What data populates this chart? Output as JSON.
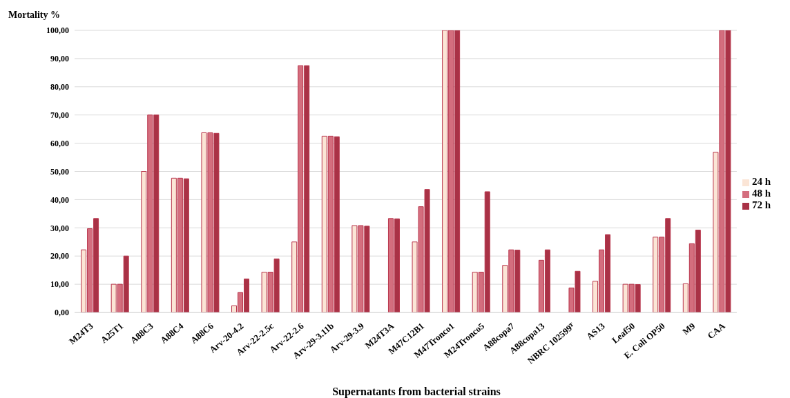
{
  "chart_data": {
    "type": "bar",
    "ylabel": "Mortality %",
    "xlabel": "Supernatants from bacterial strains",
    "categories": [
      "M24T3",
      "A25T1",
      "A88C3",
      "A88C4",
      "A88C6",
      "Arv-20-4.2",
      "Arv-22-2.5c",
      "Arv-22-2.6",
      "Arv-29-3.11b",
      "Arv-29-3.9",
      "M24T3A",
      "M47C12B1",
      "M47Tronco1",
      "M24Tronco5",
      "A88copa7",
      "A88copa13",
      "NBRC 102599ᵀ",
      "AS13",
      "Leaf50",
      "E. Coli OP50",
      "M9",
      "CAA"
    ],
    "series": [
      {
        "name": "24 h",
        "color": "#fbe5d6",
        "values": [
          22.2,
          10,
          50,
          47.6,
          63.7,
          2.4,
          14.3,
          25,
          62.5,
          30.8,
          0,
          25,
          100,
          14.3,
          16.7,
          0,
          0,
          11.1,
          10,
          26.7,
          10.2,
          56.8
        ]
      },
      {
        "name": "48 h",
        "color": "#d46e7e",
        "values": [
          29.7,
          10,
          70,
          47.6,
          63.7,
          7.1,
          14.3,
          87.5,
          62.5,
          30.8,
          33.3,
          37.5,
          100,
          14.3,
          22.2,
          18.5,
          8.7,
          22.2,
          10,
          26.7,
          24.4,
          100
        ]
      },
      {
        "name": "72 h",
        "color": "#a93246",
        "values": [
          33.3,
          20,
          70,
          47.4,
          63.5,
          11.9,
          19,
          87.5,
          62.3,
          30.6,
          33.2,
          43.6,
          100,
          42.8,
          22.1,
          22.2,
          14.6,
          27.6,
          9.9,
          33.3,
          29.2,
          100
        ]
      }
    ],
    "ylim": [
      0,
      100
    ],
    "yticks": [
      {
        "value": 0,
        "label": "0,00"
      },
      {
        "value": 10,
        "label": "10,00"
      },
      {
        "value": 20,
        "label": "20,00"
      },
      {
        "value": 30,
        "label": "30,00"
      },
      {
        "value": 40,
        "label": "40,00"
      },
      {
        "value": 50,
        "label": "50,00"
      },
      {
        "value": 60,
        "label": "60,00"
      },
      {
        "value": 70,
        "label": "70,00"
      },
      {
        "value": 80,
        "label": "80,00"
      },
      {
        "value": 90,
        "label": "90,00"
      },
      {
        "value": 100,
        "label": "100,00"
      }
    ],
    "grid": "y",
    "legend": "right"
  }
}
